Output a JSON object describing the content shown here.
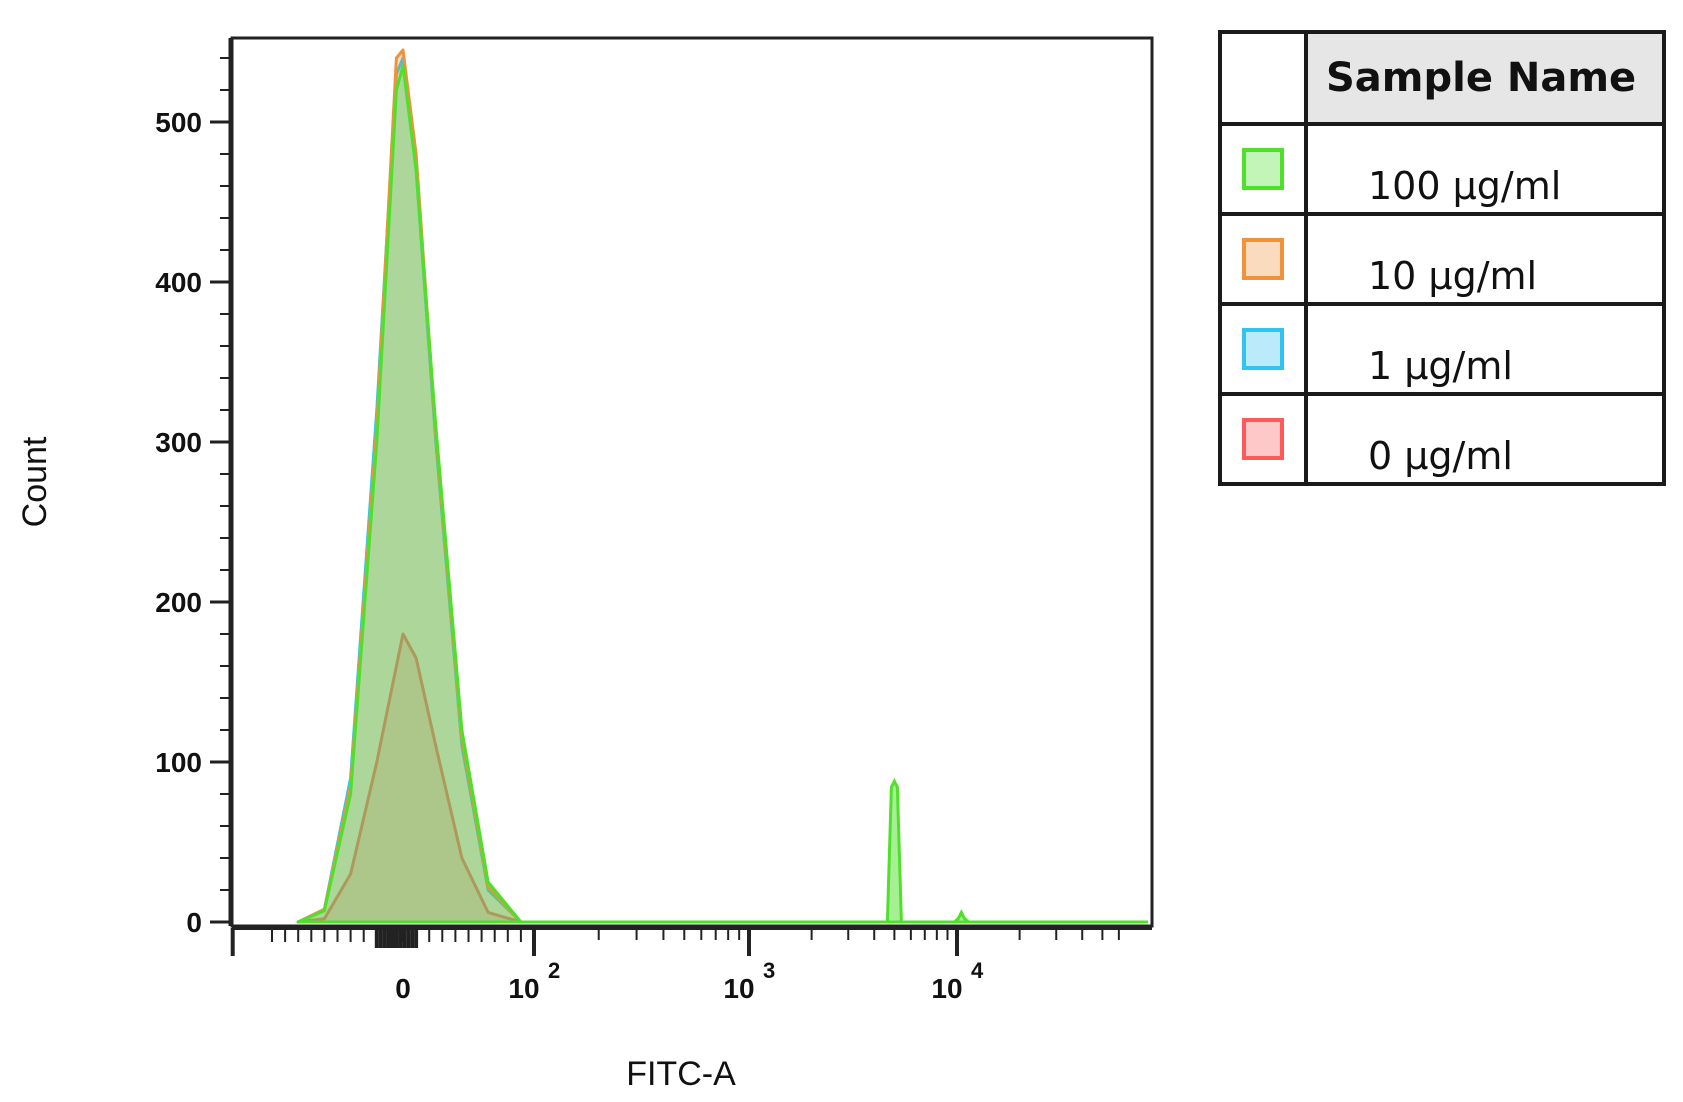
{
  "chart_data": {
    "type": "histogram",
    "xlabel": "FITC-A",
    "ylabel": "Count",
    "ylim": [
      0,
      550
    ],
    "y_ticks": [
      0,
      100,
      200,
      300,
      400,
      500
    ],
    "x_scale": "biexponential",
    "x_tick_labels": [
      {
        "label": "0",
        "value": 0
      },
      {
        "label": "10",
        "exp": "2",
        "value": 100
      },
      {
        "label": "10",
        "exp": "3",
        "value": 1000
      },
      {
        "label": "10",
        "exp": "4",
        "value": 10000
      }
    ],
    "series": [
      {
        "name": "0 µg/ml",
        "color": "#ff5a5a",
        "peak_count": 180,
        "points": [
          [
            -80,
            0
          ],
          [
            -60,
            2
          ],
          [
            -40,
            30
          ],
          [
            -20,
            100
          ],
          [
            -5,
            160
          ],
          [
            0,
            180
          ],
          [
            10,
            165
          ],
          [
            25,
            110
          ],
          [
            45,
            40
          ],
          [
            65,
            6
          ],
          [
            90,
            0
          ]
        ]
      },
      {
        "name": "1 µg/ml",
        "color": "#33c3f0",
        "peak_count": 540,
        "points": [
          [
            -80,
            0
          ],
          [
            -60,
            8
          ],
          [
            -40,
            90
          ],
          [
            -20,
            320
          ],
          [
            -5,
            530
          ],
          [
            0,
            540
          ],
          [
            10,
            470
          ],
          [
            25,
            300
          ],
          [
            45,
            110
          ],
          [
            65,
            20
          ],
          [
            90,
            0
          ]
        ]
      },
      {
        "name": "10 µg/ml",
        "color": "#f0923a",
        "peak_count": 545,
        "points": [
          [
            -80,
            0
          ],
          [
            -60,
            8
          ],
          [
            -40,
            85
          ],
          [
            -20,
            310
          ],
          [
            -5,
            540
          ],
          [
            0,
            545
          ],
          [
            10,
            480
          ],
          [
            25,
            305
          ],
          [
            45,
            115
          ],
          [
            65,
            22
          ],
          [
            90,
            0
          ]
        ]
      },
      {
        "name": "100 µg/ml",
        "color": "#4fe02a",
        "peak_count": 535,
        "points": [
          [
            -80,
            0
          ],
          [
            -60,
            7
          ],
          [
            -40,
            80
          ],
          [
            -20,
            300
          ],
          [
            -5,
            520
          ],
          [
            0,
            535
          ],
          [
            10,
            470
          ],
          [
            25,
            310
          ],
          [
            45,
            120
          ],
          [
            65,
            25
          ],
          [
            90,
            0
          ]
        ],
        "extra_peaks": [
          {
            "x": 5000,
            "count": 88
          },
          {
            "x": 10500,
            "count": 6
          }
        ]
      }
    ]
  },
  "legend": {
    "header": "Sample Name",
    "items": [
      {
        "label": "100 µg/ml",
        "color": "#4fe02a"
      },
      {
        "label": "10 µg/ml",
        "color": "#f0923a"
      },
      {
        "label": "1 µg/ml",
        "color": "#33c3f0"
      },
      {
        "label": "0 µg/ml",
        "color": "#ff5a5a"
      }
    ]
  }
}
